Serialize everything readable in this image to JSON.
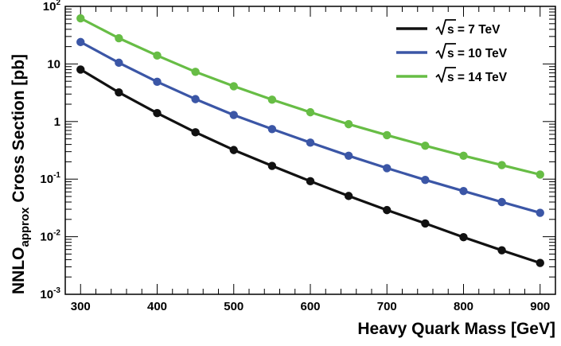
{
  "chart_data": {
    "type": "line",
    "title": "",
    "xlabel": "Heavy Quark Mass [GeV]",
    "ylabel_main": "NNLO",
    "ylabel_sub": "approx",
    "ylabel_rest": " Cross Section [pb]",
    "xlim": [
      280,
      920
    ],
    "ylim": [
      0.001,
      100
    ],
    "yscale": "log",
    "grid": false,
    "legend_position": "top-right",
    "xticks": [
      300,
      400,
      500,
      600,
      700,
      800,
      900
    ],
    "yticks": [
      {
        "value": 0.001,
        "base": "10",
        "exp": "-3"
      },
      {
        "value": 0.01,
        "base": "10",
        "exp": "-2"
      },
      {
        "value": 0.1,
        "base": "10",
        "exp": "-1"
      },
      {
        "value": 1,
        "base": "1",
        "exp": ""
      },
      {
        "value": 10,
        "base": "10",
        "exp": ""
      },
      {
        "value": 100,
        "base": "10",
        "exp": "2"
      }
    ],
    "x": [
      300,
      350,
      400,
      450,
      500,
      550,
      600,
      650,
      700,
      750,
      800,
      850,
      900
    ],
    "series": [
      {
        "name": "√s =  7 TeV",
        "label_root": "s",
        "label_rest": " =  7 TeV",
        "color": "#111111",
        "values": [
          8.0,
          3.2,
          1.4,
          0.65,
          0.32,
          0.17,
          0.092,
          0.051,
          0.029,
          0.017,
          0.0098,
          0.0058,
          0.0035
        ]
      },
      {
        "name": "√s = 10 TeV",
        "label_root": "s",
        "label_rest": " = 10 TeV",
        "color": "#3b56a6",
        "values": [
          24,
          10.5,
          4.9,
          2.45,
          1.3,
          0.74,
          0.43,
          0.255,
          0.155,
          0.097,
          0.062,
          0.04,
          0.026
        ]
      },
      {
        "name": "√s = 14 TeV",
        "label_root": "s",
        "label_rest": " = 14 TeV",
        "color": "#67bd45",
        "values": [
          62,
          28,
          14,
          7.3,
          4.1,
          2.4,
          1.45,
          0.9,
          0.58,
          0.38,
          0.255,
          0.175,
          0.12
        ]
      }
    ]
  }
}
